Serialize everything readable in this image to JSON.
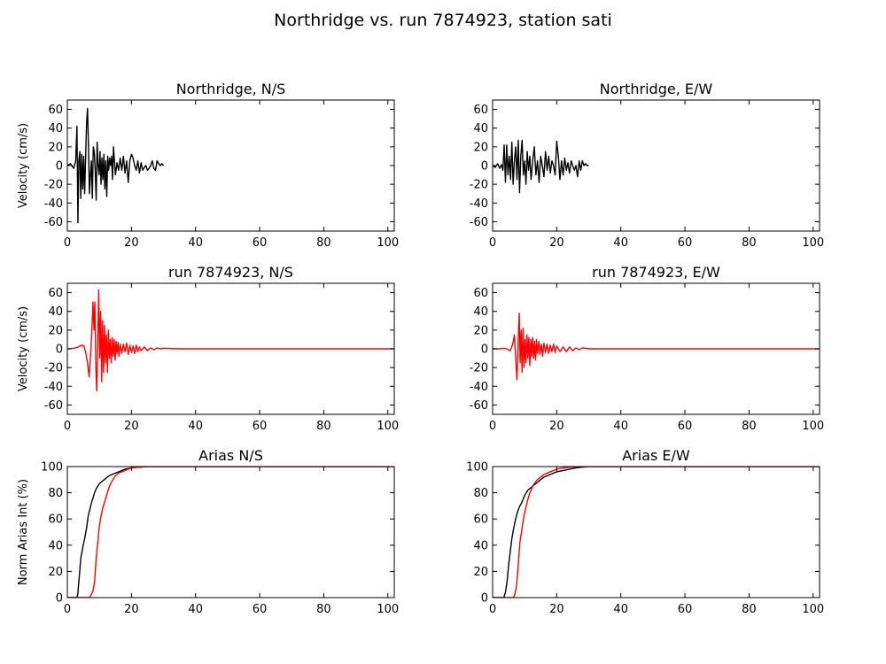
{
  "figure": {
    "title": "Northridge vs. run 7874923, station sati"
  },
  "colors": {
    "observed": "#000000",
    "simulated": "#ff0000",
    "axes": "#000000",
    "background": "#ffffff"
  },
  "chart_data": [
    {
      "type": "line",
      "title": "Northridge, N/S",
      "xlabel": "",
      "ylabel": "Velocity (cm/s)",
      "xlim": [
        0,
        102
      ],
      "ylim": [
        -70,
        70
      ],
      "xticks": [
        0,
        20,
        40,
        60,
        80,
        100
      ],
      "yticks": [
        -60,
        -40,
        -20,
        0,
        20,
        40,
        60
      ],
      "series": [
        {
          "color": "#000000",
          "x": [
            0,
            1,
            2,
            2.6,
            3.0,
            3.3,
            3.6,
            3.9,
            4.2,
            4.5,
            4.8,
            5.1,
            5.4,
            5.7,
            6.0,
            6.3,
            6.6,
            6.9,
            7.2,
            7.5,
            7.8,
            8.1,
            8.4,
            8.7,
            9.0,
            9.3,
            9.6,
            9.9,
            10.2,
            10.5,
            10.8,
            11.1,
            11.4,
            11.7,
            12.0,
            12.3,
            12.6,
            12.9,
            13.2,
            13.5,
            13.8,
            14.1,
            14.4,
            14.7,
            15.0,
            15.5,
            16.0,
            16.5,
            17.0,
            17.5,
            18.0,
            18.5,
            19.0,
            19.5,
            20.0,
            20.5,
            21.0,
            21.5,
            22.0,
            22.5,
            23.0,
            23.5,
            24.0,
            24.5,
            25.0,
            25.5,
            26.0,
            26.5,
            27.0,
            27.5,
            28.0,
            28.5,
            29.0,
            29.5,
            30.0
          ],
          "y": [
            0,
            2,
            -3,
            5,
            42,
            -61,
            5,
            15,
            -35,
            12,
            -25,
            10,
            -30,
            8,
            45,
            61,
            20,
            -30,
            -10,
            5,
            -35,
            20,
            15,
            -5,
            -37,
            25,
            0,
            -10,
            15,
            -20,
            8,
            -15,
            12,
            -25,
            5,
            -33,
            10,
            -5,
            8,
            0,
            10,
            -15,
            20,
            5,
            -10,
            3,
            -5,
            8,
            -5,
            10,
            -8,
            5,
            -18,
            5,
            12,
            8,
            0,
            -5,
            5,
            -8,
            3,
            -5,
            -2,
            0,
            -5,
            -3,
            0,
            5,
            -3,
            -5,
            5,
            2,
            0,
            2,
            0
          ]
        }
      ]
    },
    {
      "type": "line",
      "title": "Northridge, E/W",
      "xlabel": "",
      "ylabel": "",
      "xlim": [
        0,
        102
      ],
      "ylim": [
        -70,
        70
      ],
      "xticks": [
        0,
        20,
        40,
        60,
        80,
        100
      ],
      "yticks": [
        -60,
        -40,
        -20,
        0,
        20,
        40,
        60
      ],
      "series": [
        {
          "color": "#000000",
          "x": [
            0,
            0.8,
            1.6,
            2.2,
            2.8,
            3.2,
            3.6,
            4.0,
            4.4,
            4.8,
            5.2,
            5.6,
            6.0,
            6.4,
            6.8,
            7.2,
            7.6,
            8.0,
            8.4,
            8.8,
            9.2,
            9.6,
            10.0,
            10.4,
            10.8,
            11.2,
            11.6,
            12.0,
            12.5,
            13.0,
            13.5,
            14.0,
            14.5,
            15.0,
            15.5,
            16.0,
            16.5,
            17.0,
            17.5,
            18.0,
            18.5,
            19.0,
            19.5,
            20.0,
            20.5,
            21.0,
            21.5,
            22.0,
            22.5,
            23.0,
            23.5,
            24.0,
            24.5,
            25.0,
            25.5,
            26.0,
            26.5,
            27.0,
            27.5,
            28.0,
            28.5,
            29.0,
            29.5,
            30.0
          ],
          "y": [
            0,
            -2,
            2,
            -3,
            1,
            -5,
            22,
            -18,
            22,
            -10,
            10,
            -15,
            25,
            -20,
            5,
            20,
            -15,
            27,
            -29,
            10,
            27,
            -10,
            5,
            -20,
            15,
            -5,
            10,
            -15,
            5,
            20,
            -10,
            5,
            -18,
            10,
            0,
            -12,
            15,
            -5,
            10,
            -8,
            5,
            0,
            -10,
            26,
            10,
            -15,
            5,
            -10,
            8,
            -5,
            3,
            -8,
            5,
            0,
            -5,
            0,
            -12,
            5,
            -5,
            5,
            0,
            2,
            0,
            0
          ]
        }
      ]
    },
    {
      "type": "line",
      "title": "run 7874923, N/S",
      "xlabel": "",
      "ylabel": "Velocity (cm/s)",
      "xlim": [
        0,
        102
      ],
      "ylim": [
        -70,
        70
      ],
      "xticks": [
        0,
        20,
        40,
        60,
        80,
        100
      ],
      "yticks": [
        -60,
        -40,
        -20,
        0,
        20,
        40,
        60
      ],
      "series": [
        {
          "color": "#ff0000",
          "x": [
            0,
            2,
            3.5,
            4.5,
            5.2,
            5.8,
            6.3,
            6.8,
            7.2,
            7.6,
            8.0,
            8.3,
            8.6,
            8.9,
            9.2,
            9.5,
            9.8,
            10.1,
            10.4,
            10.7,
            11.0,
            11.3,
            11.6,
            11.9,
            12.2,
            12.5,
            12.8,
            13.1,
            13.4,
            13.7,
            14.0,
            14.3,
            14.6,
            14.9,
            15.2,
            15.5,
            15.8,
            16.1,
            16.5,
            17.0,
            17.5,
            18.0,
            18.5,
            19.0,
            19.5,
            20.0,
            20.5,
            21.0,
            21.5,
            22.0,
            22.5,
            23.0,
            24.0,
            25.0,
            26.0,
            27.0,
            28.0,
            29.0,
            30.0,
            35.0,
            40.0,
            60.0,
            80.0,
            102.0
          ],
          "y": [
            0,
            0.5,
            2,
            4,
            3,
            -5,
            -15,
            -30,
            -10,
            15,
            50,
            20,
            50,
            -20,
            -45,
            10,
            63,
            -10,
            40,
            -35,
            30,
            -25,
            25,
            -15,
            15,
            -25,
            20,
            -10,
            10,
            -15,
            12,
            -8,
            10,
            -12,
            8,
            -5,
            7,
            -8,
            5,
            -5,
            5,
            -3,
            6,
            -6,
            4,
            -4,
            3,
            -5,
            4,
            -3,
            2,
            -2,
            2,
            -2,
            1,
            -1,
            1,
            0,
            0.5,
            0,
            0,
            0,
            0,
            0
          ]
        }
      ]
    },
    {
      "type": "line",
      "title": "run 7874923, E/W",
      "xlabel": "",
      "ylabel": "",
      "xlim": [
        0,
        102
      ],
      "ylim": [
        -70,
        70
      ],
      "xticks": [
        0,
        20,
        40,
        60,
        80,
        100
      ],
      "yticks": [
        -60,
        -40,
        -20,
        0,
        20,
        40,
        60
      ],
      "series": [
        {
          "color": "#ff0000",
          "x": [
            0,
            2,
            4,
            5.5,
            6.3,
            6.8,
            7.2,
            7.6,
            8.0,
            8.3,
            8.6,
            8.9,
            9.2,
            9.5,
            9.8,
            10.1,
            10.4,
            10.7,
            11.0,
            11.3,
            11.6,
            11.9,
            12.2,
            12.5,
            12.8,
            13.1,
            13.4,
            13.7,
            14.0,
            14.4,
            14.8,
            15.2,
            15.6,
            16.0,
            16.5,
            17.0,
            17.5,
            18.0,
            18.5,
            19.0,
            19.5,
            20.0,
            21.0,
            22.0,
            23.0,
            24.0,
            25.0,
            26.0,
            27.0,
            28.0,
            30.0,
            40.0,
            60.0,
            80.0,
            102.0
          ],
          "y": [
            0,
            0,
            0.5,
            -2,
            5,
            15,
            -10,
            -33,
            10,
            38,
            -15,
            20,
            -25,
            22,
            -20,
            10,
            -15,
            15,
            -10,
            12,
            -18,
            10,
            -8,
            12,
            -10,
            8,
            -12,
            10,
            -5,
            8,
            -6,
            5,
            -8,
            6,
            -4,
            5,
            -5,
            4,
            -3,
            5,
            -4,
            3,
            -3,
            2,
            -3,
            2,
            -2,
            1,
            -1,
            1,
            0,
            0,
            0,
            0,
            0
          ]
        }
      ]
    },
    {
      "type": "line",
      "title": "Arias N/S",
      "xlabel": "",
      "ylabel": "Norm Arias Int (%)",
      "xlim": [
        0,
        102
      ],
      "ylim": [
        0,
        100
      ],
      "xticks": [
        0,
        20,
        40,
        60,
        80,
        100
      ],
      "yticks": [
        0,
        20,
        40,
        60,
        80,
        100
      ],
      "series": [
        {
          "color": "#000000",
          "x": [
            0,
            3.0,
            3.3,
            3.5,
            3.8,
            4.2,
            4.8,
            5.4,
            6.0,
            6.5,
            7.0,
            7.5,
            8.0,
            8.5,
            9.0,
            9.5,
            10.0,
            11.0,
            12.0,
            13.0,
            14.0,
            15.0,
            16.0,
            17.0,
            18.0,
            20.0,
            22.0,
            25.0,
            30.0,
            102.0
          ],
          "y": [
            0,
            0,
            3,
            10,
            18,
            30,
            38,
            45,
            53,
            62,
            67,
            72,
            76,
            80,
            83,
            85,
            87,
            89,
            91,
            93,
            94,
            95,
            96,
            97,
            98,
            99,
            99.5,
            100,
            100,
            100
          ]
        },
        {
          "color": "#ff0000",
          "x": [
            0,
            7.0,
            8.0,
            8.5,
            9.0,
            9.5,
            10.0,
            10.5,
            11.0,
            11.5,
            12.0,
            12.5,
            13.0,
            13.5,
            14.0,
            14.5,
            15.0,
            16.0,
            17.0,
            18.0,
            19.0,
            20.0,
            22.0,
            25.0,
            30.0,
            102.0
          ],
          "y": [
            0,
            0,
            5,
            12,
            30,
            42,
            55,
            62,
            68,
            72,
            76,
            80,
            84,
            87,
            89,
            91,
            93,
            95,
            96,
            97,
            98,
            99,
            99.5,
            100,
            100,
            100
          ]
        }
      ]
    },
    {
      "type": "line",
      "title": "Arias E/W",
      "xlabel": "",
      "ylabel": "",
      "xlim": [
        0,
        102
      ],
      "ylim": [
        0,
        100
      ],
      "xticks": [
        0,
        20,
        40,
        60,
        80,
        100
      ],
      "yticks": [
        0,
        20,
        40,
        60,
        80,
        100
      ],
      "series": [
        {
          "color": "#000000",
          "x": [
            0,
            3.5,
            4.0,
            4.5,
            5.0,
            5.5,
            6.0,
            6.5,
            7.0,
            7.5,
            8.0,
            8.5,
            9.0,
            9.5,
            10.0,
            11.0,
            12.0,
            13.0,
            14.0,
            15.0,
            16.0,
            17.0,
            18.0,
            19.0,
            20.0,
            22.0,
            24.0,
            26.0,
            28.0,
            30.0,
            102.0
          ],
          "y": [
            0,
            0,
            4,
            12,
            25,
            35,
            45,
            52,
            58,
            63,
            67,
            70,
            72,
            75,
            78,
            82,
            84,
            86,
            88,
            90,
            92,
            93,
            94,
            95,
            96,
            97,
            98,
            99,
            99.5,
            100,
            100
          ]
        },
        {
          "color": "#ff0000",
          "x": [
            0,
            6.5,
            7.0,
            7.5,
            8.0,
            8.5,
            9.0,
            9.5,
            10.0,
            10.5,
            11.0,
            11.5,
            12.0,
            12.5,
            13.0,
            14.0,
            15.0,
            16.0,
            17.0,
            18.0,
            19.0,
            20.0,
            21.0,
            22.0,
            24.0,
            26.0,
            28.0,
            102.0
          ],
          "y": [
            0,
            0,
            3,
            10,
            25,
            42,
            50,
            58,
            65,
            70,
            75,
            79,
            82,
            85,
            87,
            90,
            92,
            94,
            95,
            96,
            97,
            98,
            98.5,
            99,
            99.5,
            100,
            100,
            100
          ]
        }
      ]
    }
  ]
}
